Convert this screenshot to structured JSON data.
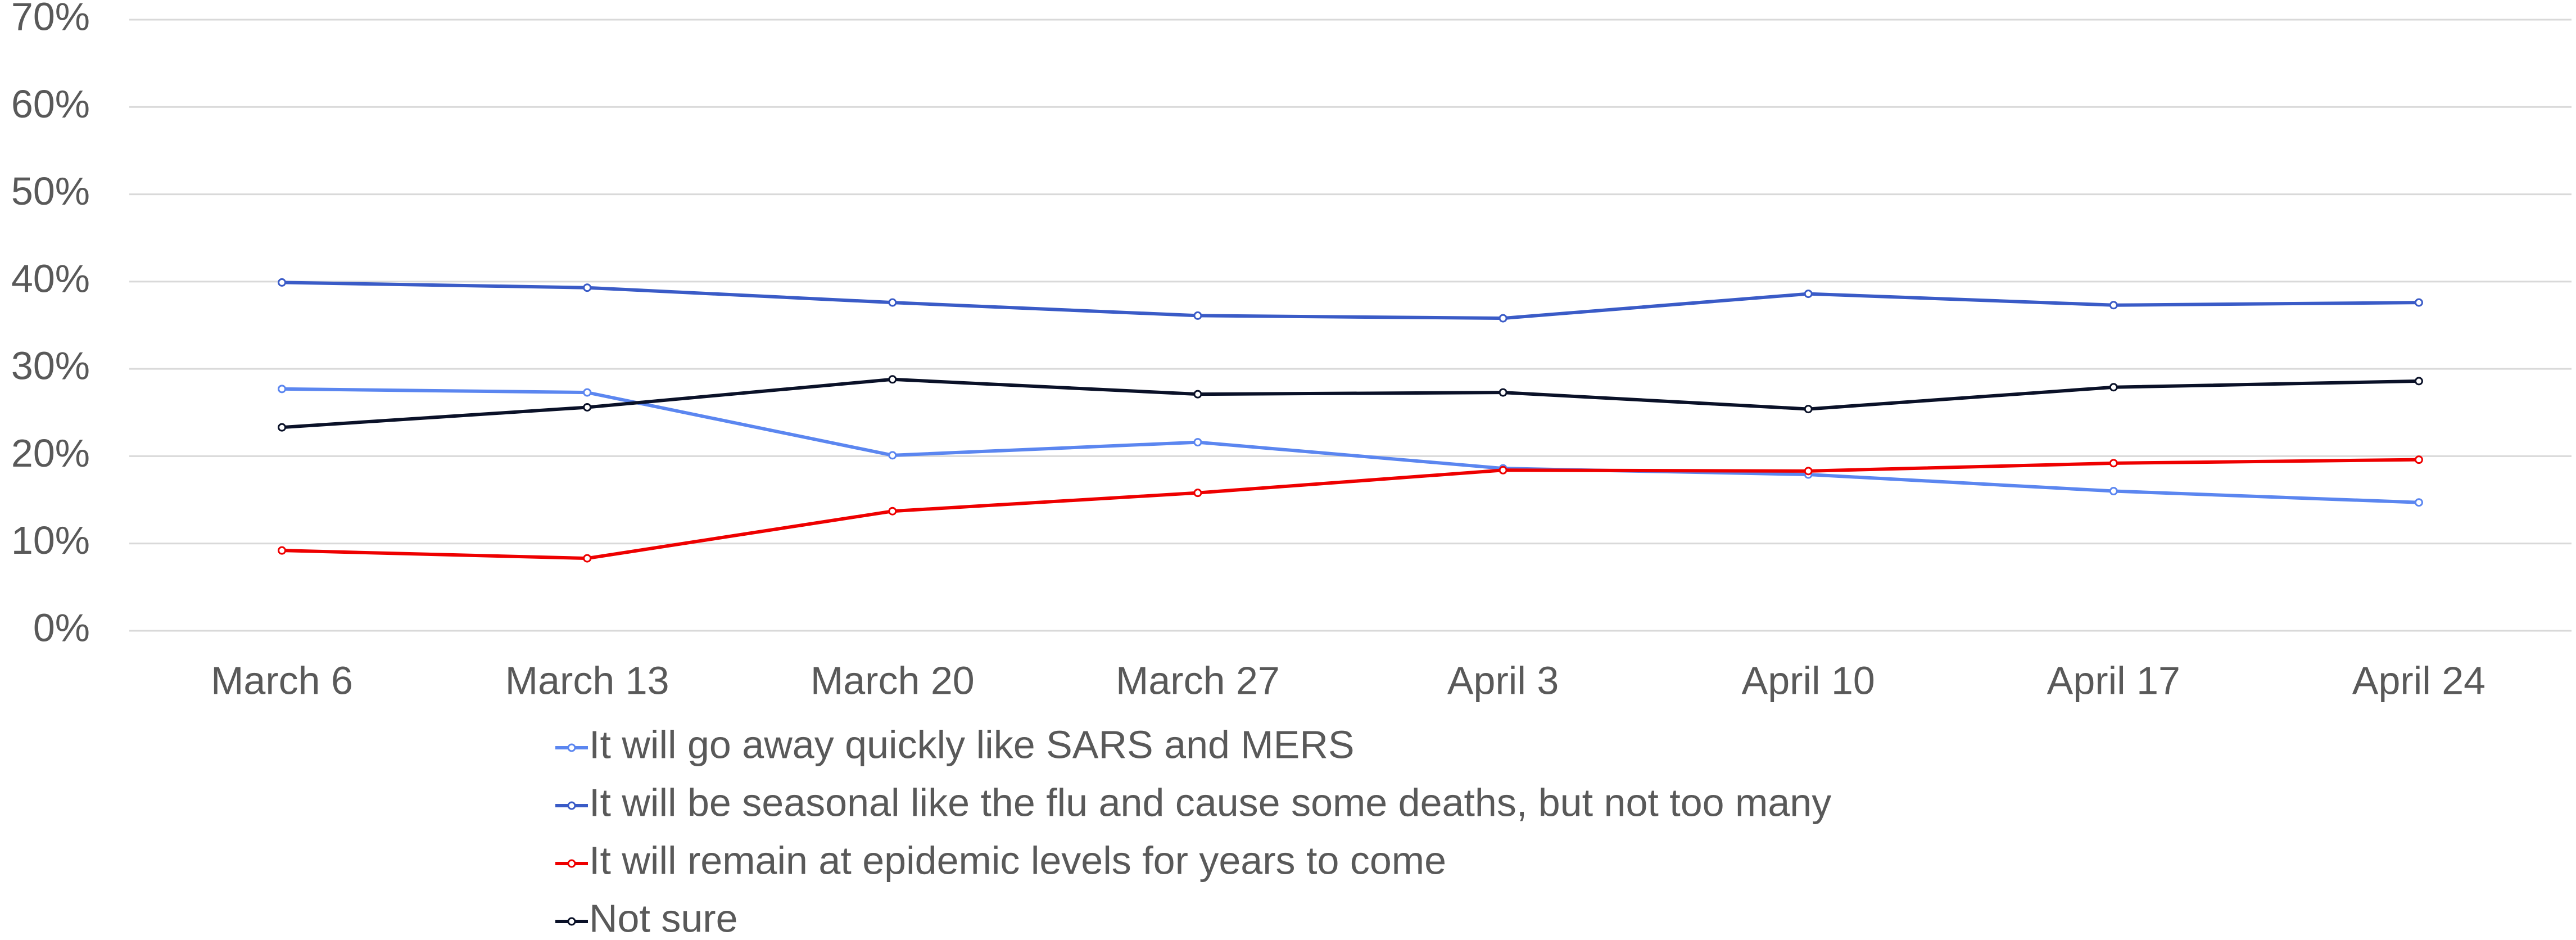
{
  "chart_data": {
    "type": "line",
    "categories": [
      "March 6",
      "March 13",
      "March 20",
      "March 27",
      "April 3",
      "April 10",
      "April 17",
      "April 24"
    ],
    "series": [
      {
        "name": "It will go away quickly like SARS and MERS",
        "color": "#5b86f0",
        "values": [
          27.7,
          27.3,
          20.1,
          21.6,
          18.6,
          17.9,
          16.0,
          14.7
        ]
      },
      {
        "name": "It will be seasonal like the flu and cause some deaths, but not too many",
        "color": "#3a5bc7",
        "values": [
          39.9,
          39.3,
          37.6,
          36.1,
          35.8,
          38.6,
          37.3,
          37.6
        ]
      },
      {
        "name": "It will remain at epidemic levels for years to come",
        "color": "#ee0000",
        "values": [
          9.2,
          8.3,
          13.7,
          15.8,
          18.4,
          18.3,
          19.2,
          19.6
        ]
      },
      {
        "name": "Not sure",
        "color": "#0a1128",
        "values": [
          23.3,
          25.6,
          28.8,
          27.1,
          27.3,
          25.4,
          27.9,
          28.6
        ]
      }
    ],
    "ylim": [
      0,
      70
    ],
    "yticks": [
      {
        "value": 0,
        "label": "0%"
      },
      {
        "value": 10,
        "label": "10%"
      },
      {
        "value": 20,
        "label": "20%"
      },
      {
        "value": 30,
        "label": "30%"
      },
      {
        "value": 40,
        "label": "40%"
      },
      {
        "value": 50,
        "label": "50%"
      },
      {
        "value": 60,
        "label": "60%"
      },
      {
        "value": 70,
        "label": "70%"
      }
    ],
    "grid": true,
    "legend": "bottom"
  }
}
